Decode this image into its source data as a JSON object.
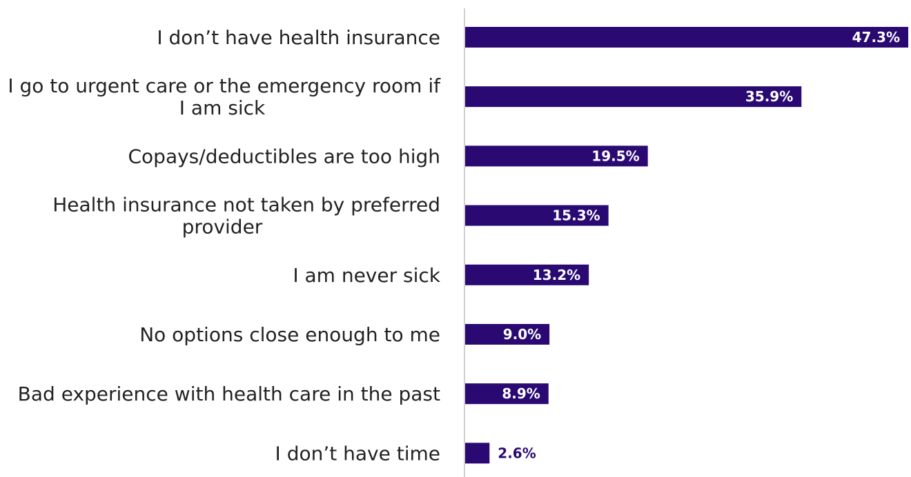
{
  "chart_data": {
    "type": "bar",
    "orientation": "horizontal",
    "categories": [
      [
        "I don’t have health insurance"
      ],
      [
        "I go to urgent care or the emergency room if",
        "I am sick"
      ],
      [
        "Copays/deductibles are too high"
      ],
      [
        "Health insurance not taken by preferred",
        "provider"
      ],
      [
        "I am never sick"
      ],
      [
        "No options close enough to me"
      ],
      [
        "Bad experience with health care in the past"
      ],
      [
        "I don’t have time"
      ]
    ],
    "values": [
      47.3,
      35.9,
      19.5,
      15.3,
      13.2,
      9.0,
      8.9,
      2.6
    ],
    "value_labels": [
      "47.3%",
      "35.9%",
      "19.5%",
      "15.3%",
      "13.2%",
      "9.0%",
      "8.9%",
      "2.6%"
    ],
    "xlim": [
      0,
      47.3
    ],
    "grid": false,
    "legend": "none",
    "colors": {
      "bar": "#2a0a72",
      "label_inside": "#ffffff",
      "label_outside": "#2a0a72",
      "axis": "#d0d0d0"
    }
  }
}
